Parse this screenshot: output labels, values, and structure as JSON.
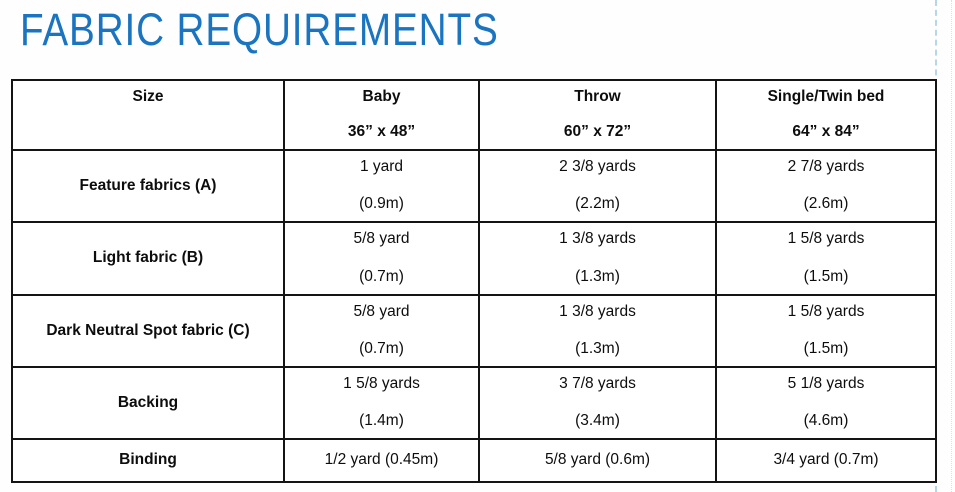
{
  "title": "FABRIC REQUIREMENTS",
  "colors": {
    "title_blue": "#1a74c0",
    "table_border": "#141414",
    "guide_blue": "#b5d7e8"
  },
  "table": {
    "header": {
      "size_label": "Size",
      "columns": [
        {
          "name": "Baby",
          "dimensions": "36” x 48”"
        },
        {
          "name": "Throw",
          "dimensions": "60” x 72”"
        },
        {
          "name": "Single/Twin bed",
          "dimensions": "64” x 84”"
        }
      ]
    },
    "rows": [
      {
        "label": "Feature fabrics (A)",
        "cells": [
          {
            "yards": "1 yard",
            "metric": "(0.9m)"
          },
          {
            "yards": "2 3/8 yards",
            "metric": "(2.2m)"
          },
          {
            "yards": "2 7/8 yards",
            "metric": "(2.6m)"
          }
        ]
      },
      {
        "label": "Light fabric (B)",
        "cells": [
          {
            "yards": "5/8 yard",
            "metric": "(0.7m)"
          },
          {
            "yards": "1 3/8 yards",
            "metric": "(1.3m)"
          },
          {
            "yards": "1 5/8 yards",
            "metric": "(1.5m)"
          }
        ]
      },
      {
        "label": "Dark Neutral Spot fabric (C)",
        "cells": [
          {
            "yards": "5/8 yard",
            "metric": "(0.7m)"
          },
          {
            "yards": "1 3/8 yards",
            "metric": "(1.3m)"
          },
          {
            "yards": "1 5/8 yards",
            "metric": "(1.5m)"
          }
        ]
      },
      {
        "label": "Backing",
        "cells": [
          {
            "yards": "1 5/8 yards",
            "metric": "(1.4m)"
          },
          {
            "yards": "3 7/8 yards",
            "metric": "(3.4m)"
          },
          {
            "yards": "5 1/8 yards",
            "metric": "(4.6m)"
          }
        ]
      },
      {
        "label": "Binding",
        "cells": [
          {
            "yards": "1/2 yard (0.45m)"
          },
          {
            "yards": "5/8 yard (0.6m)"
          },
          {
            "yards": "3/4 yard (0.7m)"
          }
        ]
      }
    ]
  }
}
